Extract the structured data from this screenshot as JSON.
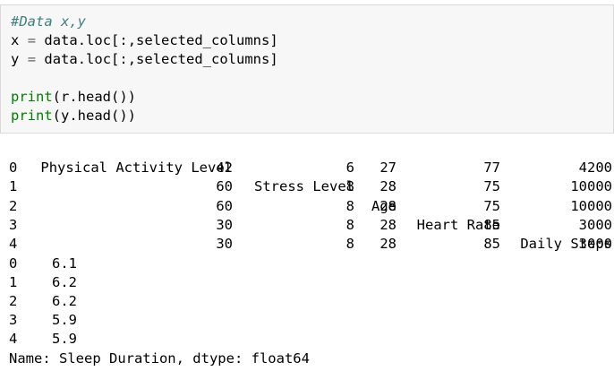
{
  "code": {
    "comment": "#Data x,y",
    "line_x_var": "x",
    "line_x_rest": "data.loc[:,selected_columns]",
    "line_y_var": "y",
    "line_y_rest": "data.loc[:,selected_columns]",
    "print1_fn": "print",
    "print1_rest": "(r.head())",
    "print2_fn": "print",
    "print2_rest": "(y.head())",
    "equals": "="
  },
  "dataframe": {
    "columns": [
      "Physical Activity Level",
      "Stress Level",
      "Age",
      "Heart Rate",
      "Daily Steps"
    ],
    "rows": [
      {
        "index": "0",
        "values": [
          "42",
          "6",
          "27",
          "77",
          "4200"
        ]
      },
      {
        "index": "1",
        "values": [
          "60",
          "8",
          "28",
          "75",
          "10000"
        ]
      },
      {
        "index": "2",
        "values": [
          "60",
          "8",
          "28",
          "75",
          "10000"
        ]
      },
      {
        "index": "3",
        "values": [
          "30",
          "8",
          "28",
          "85",
          "3000"
        ]
      },
      {
        "index": "4",
        "values": [
          "30",
          "8",
          "28",
          "85",
          "3000"
        ]
      }
    ]
  },
  "series": {
    "rows": [
      {
        "index": "0",
        "value": "6.1"
      },
      {
        "index": "1",
        "value": "6.2"
      },
      {
        "index": "2",
        "value": "6.2"
      },
      {
        "index": "3",
        "value": "5.9"
      },
      {
        "index": "4",
        "value": "5.9"
      }
    ],
    "footer": "Name: Sleep Duration, dtype: float64"
  }
}
